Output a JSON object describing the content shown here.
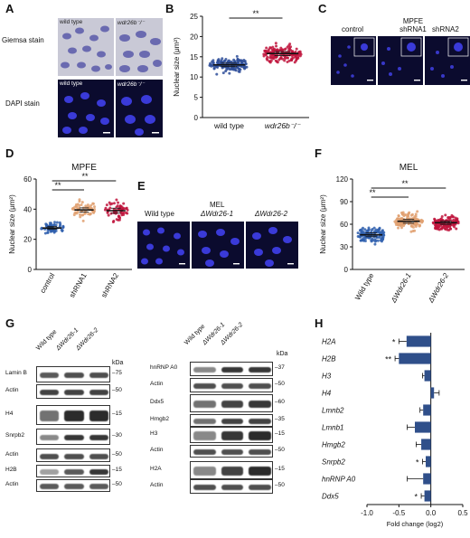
{
  "panels": {
    "A": {
      "letter": "A",
      "giemsa_label": "Giemsa stain",
      "dapi_label": "DAPI stain",
      "wt": "wild type",
      "mut": "wdr26b⁻/⁻"
    },
    "B": {
      "letter": "B"
    },
    "C": {
      "letter": "C",
      "control": "control",
      "mpfe": "MPFE",
      "sh1": "shRNA1",
      "sh2": "shRNA2"
    },
    "D": {
      "letter": "D"
    },
    "E": {
      "letter": "E",
      "wt": "Wild type",
      "mel": "MEL",
      "d1": "ΔWdr26-1",
      "d2": "ΔWdr26-2"
    },
    "F": {
      "letter": "F"
    },
    "G": {
      "letter": "G",
      "kda": "kDa",
      "lanes": [
        "Wild type",
        "ΔWdr26-1",
        "ΔWdr26-2"
      ],
      "left_rows": [
        {
          "label": "Lamin B",
          "mw": "75"
        },
        {
          "label": "Actin",
          "mw": "50"
        },
        {
          "label": "H4",
          "mw": "15"
        },
        {
          "label": "Snrpb2",
          "mw": "30"
        },
        {
          "label": "Actin",
          "mw": "50"
        },
        {
          "label": "H2B",
          "mw": "15"
        },
        {
          "label": "Actin",
          "mw": "50"
        }
      ],
      "right_rows": [
        {
          "label": "hnRNP A0",
          "mw": "37"
        },
        {
          "label": "Actin",
          "mw": "50"
        },
        {
          "label": "Ddx5",
          "mw": "60"
        },
        {
          "label": "Hmgb2",
          "mw": "35"
        },
        {
          "label": "H3",
          "mw": "15"
        },
        {
          "label": "Actin",
          "mw": "50"
        },
        {
          "label": "H2A",
          "mw": "15"
        },
        {
          "label": "Actin",
          "mw": "50"
        }
      ]
    },
    "H": {
      "letter": "H"
    }
  },
  "chart_data": [
    {
      "panel": "B",
      "type": "scatter",
      "ylabel": "Nuclear size (μm²)",
      "ylim": [
        0,
        25
      ],
      "yticks": [
        0,
        5,
        10,
        15,
        20,
        25
      ],
      "categories": [
        "wild type",
        "wdr26b⁻/⁻"
      ],
      "means": [
        13.0,
        15.8
      ],
      "spread": [
        [
          9,
          17.5
        ],
        [
          11,
          21
        ]
      ],
      "colors": [
        "#2f4f9a",
        "#c0143c"
      ],
      "significance": [
        {
          "between": [
            0,
            1
          ],
          "label": "**"
        }
      ]
    },
    {
      "panel": "D",
      "type": "scatter",
      "title": "MPFE",
      "ylabel": "Nuclear size (μm²)",
      "ylim": [
        0,
        60
      ],
      "yticks": [
        0,
        20,
        40,
        60
      ],
      "categories": [
        "control",
        "shRNA1",
        "shRNA2"
      ],
      "means": [
        27.5,
        39.5,
        39.0
      ],
      "spread": [
        [
          20,
          38
        ],
        [
          28,
          55
        ],
        [
          25,
          58
        ]
      ],
      "colors": [
        "#2f5fae",
        "#e0a070",
        "#c0143c"
      ],
      "significance": [
        {
          "between": [
            0,
            1
          ],
          "label": "**"
        },
        {
          "between": [
            0,
            2
          ],
          "label": "**"
        }
      ]
    },
    {
      "panel": "F",
      "type": "scatter",
      "title": "MEL",
      "ylabel": "Nuclear size (μm²)",
      "ylim": [
        0,
        120
      ],
      "yticks": [
        0,
        30,
        60,
        90,
        120
      ],
      "categories": [
        "Wild type",
        "ΔWdr26-1",
        "ΔWdr26-2"
      ],
      "means": [
        46,
        64,
        62
      ],
      "spread": [
        [
          28,
          78
        ],
        [
          42,
          95
        ],
        [
          45,
          90
        ]
      ],
      "colors": [
        "#2f5fae",
        "#e0a070",
        "#c0143c"
      ],
      "significance": [
        {
          "between": [
            0,
            1
          ],
          "label": "**"
        },
        {
          "between": [
            0,
            2
          ],
          "label": "**"
        }
      ]
    },
    {
      "panel": "H",
      "type": "bar",
      "orientation": "horizontal",
      "xlabel": "Fold change (log2)",
      "xlim": [
        -1.0,
        0.5
      ],
      "xticks": [
        -1.0,
        -0.5,
        0.0,
        0.5
      ],
      "categories": [
        "H2A",
        "H2B",
        "H3",
        "H4",
        "Lmnb2",
        "Lmnb1",
        "Hmgb2",
        "Snrpb2",
        "hnRNP A0",
        "Ddx5"
      ],
      "values": [
        -0.38,
        -0.5,
        -0.1,
        0.05,
        -0.12,
        -0.25,
        -0.15,
        -0.08,
        -0.12,
        -0.1
      ],
      "errors": [
        0.12,
        0.06,
        0.03,
        0.08,
        0.05,
        0.12,
        0.08,
        0.05,
        0.25,
        0.05
      ],
      "stars": [
        "*",
        "**",
        "",
        "",
        "",
        "",
        "",
        "*",
        "",
        "*"
      ],
      "color": "#2f4f8a"
    }
  ]
}
